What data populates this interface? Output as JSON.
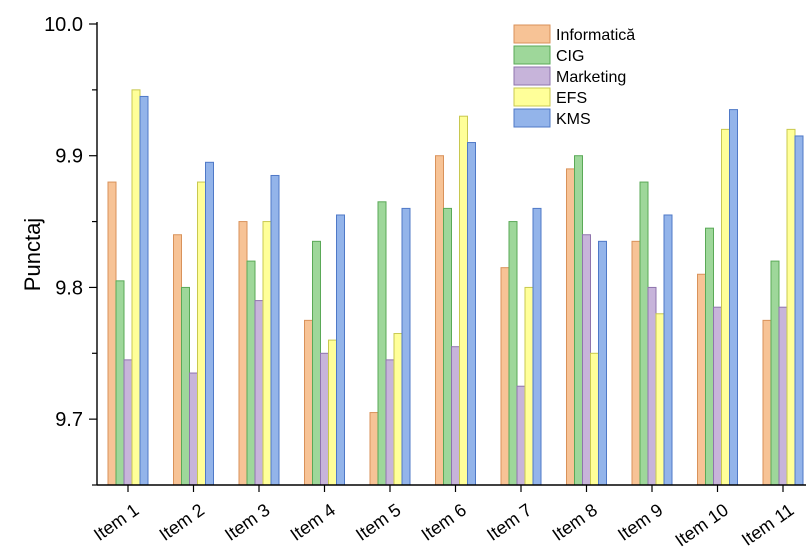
{
  "chart_data": {
    "type": "bar",
    "title": "",
    "xlabel": "",
    "ylabel": "Punctaj",
    "ylim": [
      9.65,
      10.0
    ],
    "yticks": [
      "9.7",
      "9.8",
      "9.9",
      "10.0"
    ],
    "categories": [
      "Item 1",
      "Item 2",
      "Item 3",
      "Item 4",
      "Item 5",
      "Item 6",
      "Item 7",
      "Item 8",
      "Item 9",
      "Item 10",
      "Item 11"
    ],
    "series": [
      {
        "name": "Informatică",
        "color": "#f7c396",
        "stroke": "#d9925a",
        "values": [
          9.88,
          9.84,
          9.85,
          9.775,
          9.705,
          9.9,
          9.815,
          9.89,
          9.835,
          9.81,
          9.775
        ]
      },
      {
        "name": "CIG",
        "color": "#9ed79a",
        "stroke": "#5aa957",
        "values": [
          9.805,
          9.8,
          9.82,
          9.835,
          9.865,
          9.86,
          9.85,
          9.9,
          9.88,
          9.845,
          9.82
        ]
      },
      {
        "name": "Marketing",
        "color": "#c7b4da",
        "stroke": "#8f74ad",
        "values": [
          9.745,
          9.735,
          9.79,
          9.75,
          9.745,
          9.755,
          9.725,
          9.84,
          9.8,
          9.785,
          9.785
        ]
      },
      {
        "name": "EFS",
        "color": "#ffff99",
        "stroke": "#c8c84f",
        "values": [
          9.95,
          9.88,
          9.85,
          9.76,
          9.765,
          9.93,
          9.8,
          9.75,
          9.78,
          9.92,
          9.92
        ]
      },
      {
        "name": "KMS",
        "color": "#93b4ea",
        "stroke": "#4f79c7",
        "values": [
          9.945,
          9.895,
          9.885,
          9.855,
          9.86,
          9.91,
          9.86,
          9.835,
          9.855,
          9.935,
          9.915
        ]
      }
    ],
    "legend_position": "top-right",
    "grid": false
  }
}
